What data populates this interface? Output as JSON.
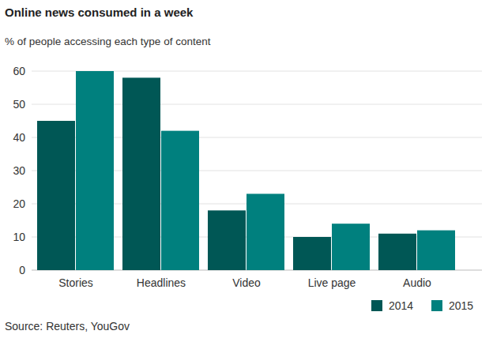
{
  "chart_data": {
    "type": "bar",
    "title": "Online news consumed in a week",
    "subtitle": "% of people accessing each type of content",
    "source": "Source: Reuters, YouGov",
    "categories": [
      "Stories",
      "Headlines",
      "Video",
      "Live page",
      "Audio"
    ],
    "series": [
      {
        "name": "2014",
        "color": "#005755",
        "values": [
          45,
          58,
          18,
          10,
          11
        ]
      },
      {
        "name": "2015",
        "color": "#00807e",
        "values": [
          60,
          42,
          23,
          14,
          12
        ]
      }
    ],
    "ylim": [
      0,
      60
    ],
    "yticks": [
      0,
      10,
      20,
      30,
      40,
      50,
      60
    ],
    "grid": true,
    "legend": "bottom-right"
  }
}
